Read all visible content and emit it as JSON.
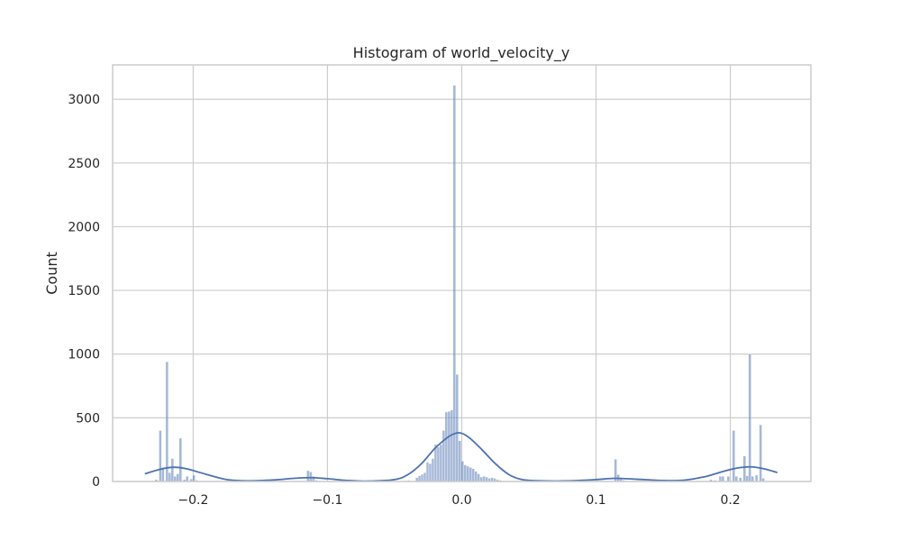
{
  "chart_data": {
    "type": "bar",
    "title": "Histogram of world_velocity_y",
    "xlabel": "",
    "ylabel": "Count",
    "xlim": [
      -0.26,
      0.26
    ],
    "ylim": [
      0,
      3270
    ],
    "x_ticks": [
      -0.2,
      -0.1,
      0.0,
      0.1,
      0.2
    ],
    "x_tick_labels": [
      "−0.2",
      "−0.1",
      "0.0",
      "0.1",
      "0.2"
    ],
    "y_ticks": [
      0,
      500,
      1000,
      1500,
      2000,
      2500,
      3000
    ],
    "y_tick_labels": [
      "0",
      "500",
      "1000",
      "1500",
      "2000",
      "2500",
      "3000"
    ],
    "grid": true,
    "bar_color": "#4c72b0",
    "line_color": "#4c72b0",
    "bin_width": 0.0019,
    "bins": [
      {
        "x": -0.2275,
        "count": 15
      },
      {
        "x": -0.2245,
        "count": 400
      },
      {
        "x": -0.2225,
        "count": 110
      },
      {
        "x": -0.2195,
        "count": 940
      },
      {
        "x": -0.2175,
        "count": 70
      },
      {
        "x": -0.2155,
        "count": 180
      },
      {
        "x": -0.2135,
        "count": 40
      },
      {
        "x": -0.2115,
        "count": 60
      },
      {
        "x": -0.2095,
        "count": 340
      },
      {
        "x": -0.2065,
        "count": 15
      },
      {
        "x": -0.2045,
        "count": 40
      },
      {
        "x": -0.2015,
        "count": 20
      },
      {
        "x": -0.1995,
        "count": 50
      },
      {
        "x": -0.1975,
        "count": 10
      },
      {
        "x": -0.1955,
        "count": 5
      },
      {
        "x": -0.1145,
        "count": 85
      },
      {
        "x": -0.1125,
        "count": 75
      },
      {
        "x": -0.1105,
        "count": 40
      },
      {
        "x": -0.1085,
        "count": 10
      },
      {
        "x": -0.0395,
        "count": 8
      },
      {
        "x": -0.0335,
        "count": 30
      },
      {
        "x": -0.0315,
        "count": 45
      },
      {
        "x": -0.0295,
        "count": 55
      },
      {
        "x": -0.0275,
        "count": 70
      },
      {
        "x": -0.0255,
        "count": 150
      },
      {
        "x": -0.0235,
        "count": 140
      },
      {
        "x": -0.0215,
        "count": 180
      },
      {
        "x": -0.0195,
        "count": 290
      },
      {
        "x": -0.0175,
        "count": 270
      },
      {
        "x": -0.0155,
        "count": 290
      },
      {
        "x": -0.0135,
        "count": 400
      },
      {
        "x": -0.0115,
        "count": 545
      },
      {
        "x": -0.0095,
        "count": 550
      },
      {
        "x": -0.0075,
        "count": 560
      },
      {
        "x": -0.0055,
        "count": 3110
      },
      {
        "x": -0.0035,
        "count": 840
      },
      {
        "x": -0.0015,
        "count": 320
      },
      {
        "x": 0.0005,
        "count": 160
      },
      {
        "x": 0.0025,
        "count": 130
      },
      {
        "x": 0.0045,
        "count": 120
      },
      {
        "x": 0.0065,
        "count": 110
      },
      {
        "x": 0.0085,
        "count": 100
      },
      {
        "x": 0.0105,
        "count": 80
      },
      {
        "x": 0.0125,
        "count": 60
      },
      {
        "x": 0.0145,
        "count": 35
      },
      {
        "x": 0.0165,
        "count": 40
      },
      {
        "x": 0.0185,
        "count": 35
      },
      {
        "x": 0.0205,
        "count": 25
      },
      {
        "x": 0.0225,
        "count": 30
      },
      {
        "x": 0.0245,
        "count": 25
      },
      {
        "x": 0.0265,
        "count": 15
      },
      {
        "x": 0.0285,
        "count": 10
      },
      {
        "x": 0.1145,
        "count": 175
      },
      {
        "x": 0.1165,
        "count": 55
      },
      {
        "x": 0.1185,
        "count": 30
      },
      {
        "x": 0.1205,
        "count": 10
      },
      {
        "x": 0.1855,
        "count": 15
      },
      {
        "x": 0.1885,
        "count": 10
      },
      {
        "x": 0.1925,
        "count": 40
      },
      {
        "x": 0.1945,
        "count": 40
      },
      {
        "x": 0.1985,
        "count": 40
      },
      {
        "x": 0.2025,
        "count": 400
      },
      {
        "x": 0.2045,
        "count": 40
      },
      {
        "x": 0.2075,
        "count": 30
      },
      {
        "x": 0.2105,
        "count": 200
      },
      {
        "x": 0.2125,
        "count": 45
      },
      {
        "x": 0.2145,
        "count": 1000
      },
      {
        "x": 0.2165,
        "count": 40
      },
      {
        "x": 0.2195,
        "count": 50
      },
      {
        "x": 0.2225,
        "count": 445
      },
      {
        "x": 0.2245,
        "count": 25
      }
    ],
    "kde": {
      "x": [
        -0.236,
        -0.225,
        -0.215,
        -0.205,
        -0.19,
        -0.175,
        -0.16,
        -0.14,
        -0.125,
        -0.112,
        -0.1,
        -0.085,
        -0.07,
        -0.05,
        -0.04,
        -0.03,
        -0.02,
        -0.01,
        -0.004,
        0.0,
        0.006,
        0.015,
        0.025,
        0.035,
        0.045,
        0.06,
        0.08,
        0.1,
        0.114,
        0.13,
        0.15,
        0.165,
        0.18,
        0.195,
        0.205,
        0.215,
        0.225,
        0.235
      ],
      "y": [
        60,
        95,
        112,
        100,
        55,
        15,
        5,
        12,
        25,
        30,
        22,
        8,
        3,
        15,
        55,
        140,
        260,
        350,
        380,
        378,
        340,
        250,
        140,
        55,
        15,
        5,
        5,
        15,
        25,
        18,
        8,
        10,
        35,
        80,
        105,
        115,
        100,
        70
      ]
    }
  }
}
